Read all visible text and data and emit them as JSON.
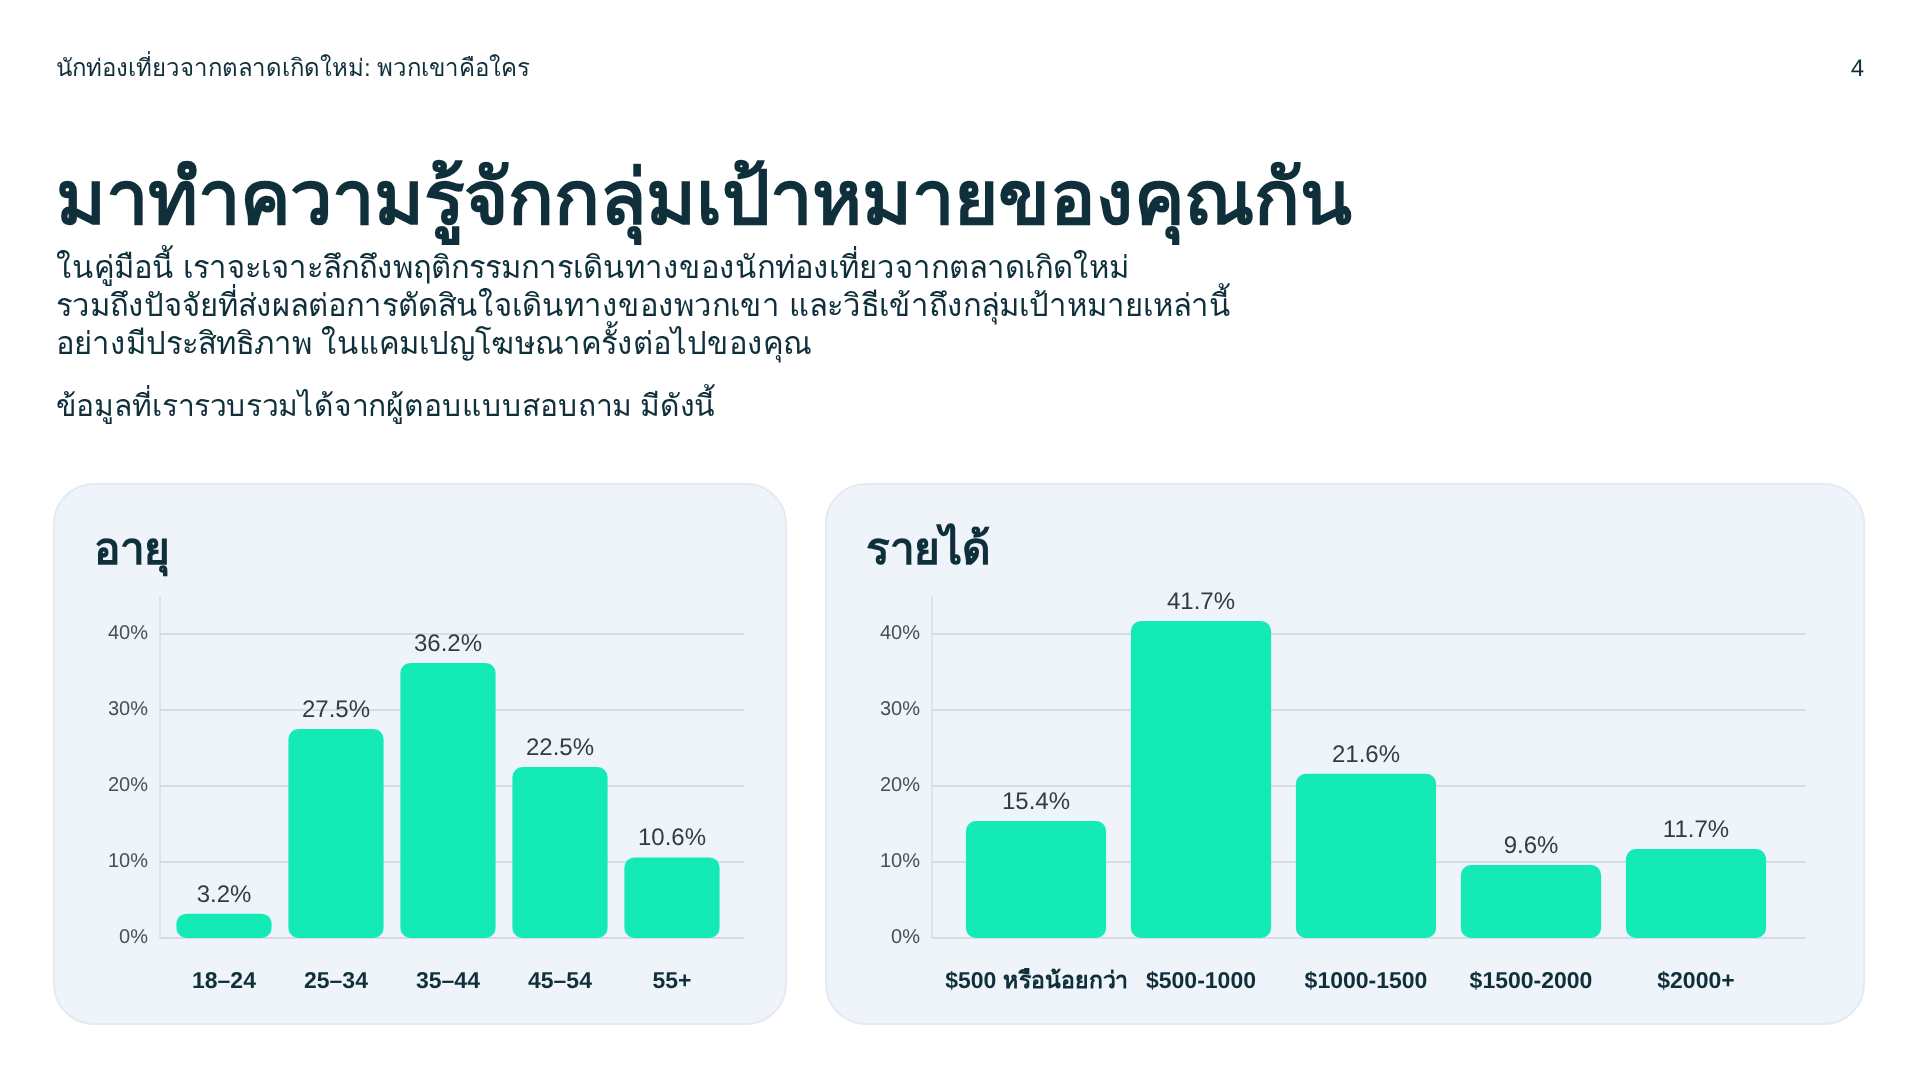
{
  "chart_data": [
    {
      "type": "other",
      "title": "มาทำความรู้จักกลุ่มเป้าหมายของคุณกัน",
      "subtitle": "ในคู่มือนี้ เราจะเจาะลึกถึงพฤติกรรมการเดินทางของนักท่องเที่ยวจากตลาดเกิดใหม่\nรวมถึงปัจจัยที่ส่งผลต่อการตัดสินใจเดินทางของพวกเขา และวิธีเข้าถึงกลุ่มเป้าหมายเหล่านี้\nอย่างมีประสิทธิภาพ ในแคมเปญโฆษณาครั้งต่อไปของคุณ",
      "annotations": [
        "นักท่องเที่ยวจากตลาดเกิดใหม่: พวกเขาคือใคร",
        "4",
        "ข้อมูลที่เรารวบรวมได้จากผู้ตอบแบบสอบถาม มีดังนี้"
      ]
    },
    {
      "type": "bar",
      "title": "อายุ",
      "categories": [
        "18–24",
        "25–34",
        "35–44",
        "45–54",
        "55+"
      ],
      "values": [
        3.2,
        27.5,
        36.2,
        22.5,
        10.6
      ],
      "value_labels": [
        "3.2%",
        "27.5%",
        "36.2%",
        "22.5%",
        "10.6%"
      ],
      "color": "#14eab5",
      "ylim": [
        0,
        45
      ],
      "yticks": [
        {
          "value": 0,
          "label": "0%"
        },
        {
          "value": 10,
          "label": "10%"
        },
        {
          "value": 20,
          "label": "20%"
        },
        {
          "value": 30,
          "label": "30%"
        },
        {
          "value": 40,
          "label": "40%"
        }
      ],
      "grid": "y"
    },
    {
      "type": "bar",
      "title": "รายได้",
      "categories": [
        "$500 หรือน้อยกว่า",
        "$500-1000",
        "$1000-1500",
        "$1500-2000",
        "$2000+"
      ],
      "values": [
        15.4,
        41.7,
        21.6,
        9.6,
        11.7
      ],
      "value_labels": [
        "15.4%",
        "41.7%",
        "21.6%",
        "9.6%",
        "11.7%"
      ],
      "color": "#14eab5",
      "ylim": [
        0,
        45
      ],
      "yticks": [
        {
          "value": 0,
          "label": "0%"
        },
        {
          "value": 10,
          "label": "10%"
        },
        {
          "value": 20,
          "label": "20%"
        },
        {
          "value": 30,
          "label": "30%"
        },
        {
          "value": 40,
          "label": "40%"
        }
      ],
      "grid": "y"
    }
  ]
}
